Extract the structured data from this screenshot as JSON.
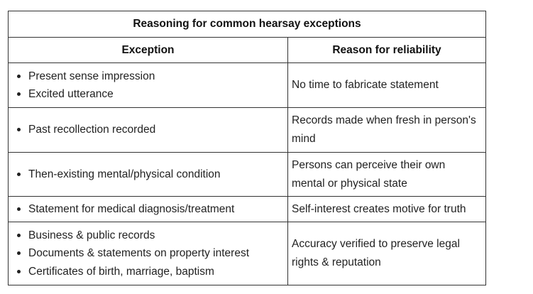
{
  "table": {
    "title": "Reasoning for common hearsay exceptions",
    "headers": {
      "exception": "Exception",
      "reason": "Reason for reliability"
    },
    "rows": [
      {
        "exceptions": [
          "Present sense impression",
          "Excited utterance"
        ],
        "reason": "No time to fabricate statement"
      },
      {
        "exceptions": [
          "Past recollection recorded"
        ],
        "reason": "Records made when fresh in person's mind"
      },
      {
        "exceptions": [
          "Then-existing mental/physical condition"
        ],
        "reason": "Persons can perceive their own mental or physical state"
      },
      {
        "exceptions": [
          "Statement for medical diagnosis/treatment"
        ],
        "reason": "Self-interest creates motive for truth"
      },
      {
        "exceptions": [
          "Business & public records",
          "Documents & statements on property interest",
          "Certificates of birth, marriage, baptism"
        ],
        "reason": "Accuracy verified to preserve legal rights & reputation"
      }
    ]
  }
}
